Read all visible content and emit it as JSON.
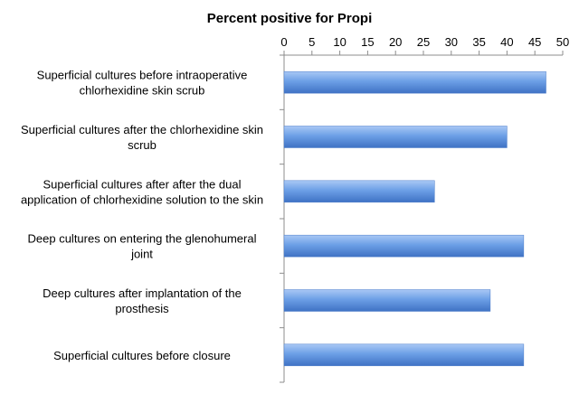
{
  "chart_data": {
    "type": "bar",
    "orientation": "horizontal",
    "title": "Percent positive for Propi",
    "xlabel": "",
    "ylabel": "",
    "xlim": [
      0,
      50
    ],
    "x_ticks": [
      0,
      5,
      10,
      15,
      20,
      25,
      30,
      35,
      40,
      45,
      50
    ],
    "axis_position": "top",
    "grid": false,
    "legend": "none",
    "bar_color": "#5a8fdc",
    "categories": [
      [
        "Superficial cultures before intraoperative",
        "chlorhexidine skin scrub"
      ],
      [
        "Superficial cultures after the chlorhexidine skin",
        "scrub"
      ],
      [
        "Superficial cultures after after the dual",
        "application of chlorhexidine solution to the skin"
      ],
      [
        "Deep cultures on entering the glenohumeral",
        "joint"
      ],
      [
        "Deep cultures after implantation of the",
        "prosthesis"
      ],
      [
        "Superficial cultures before closure"
      ]
    ],
    "values": [
      47,
      40,
      27,
      43,
      37,
      43
    ]
  }
}
